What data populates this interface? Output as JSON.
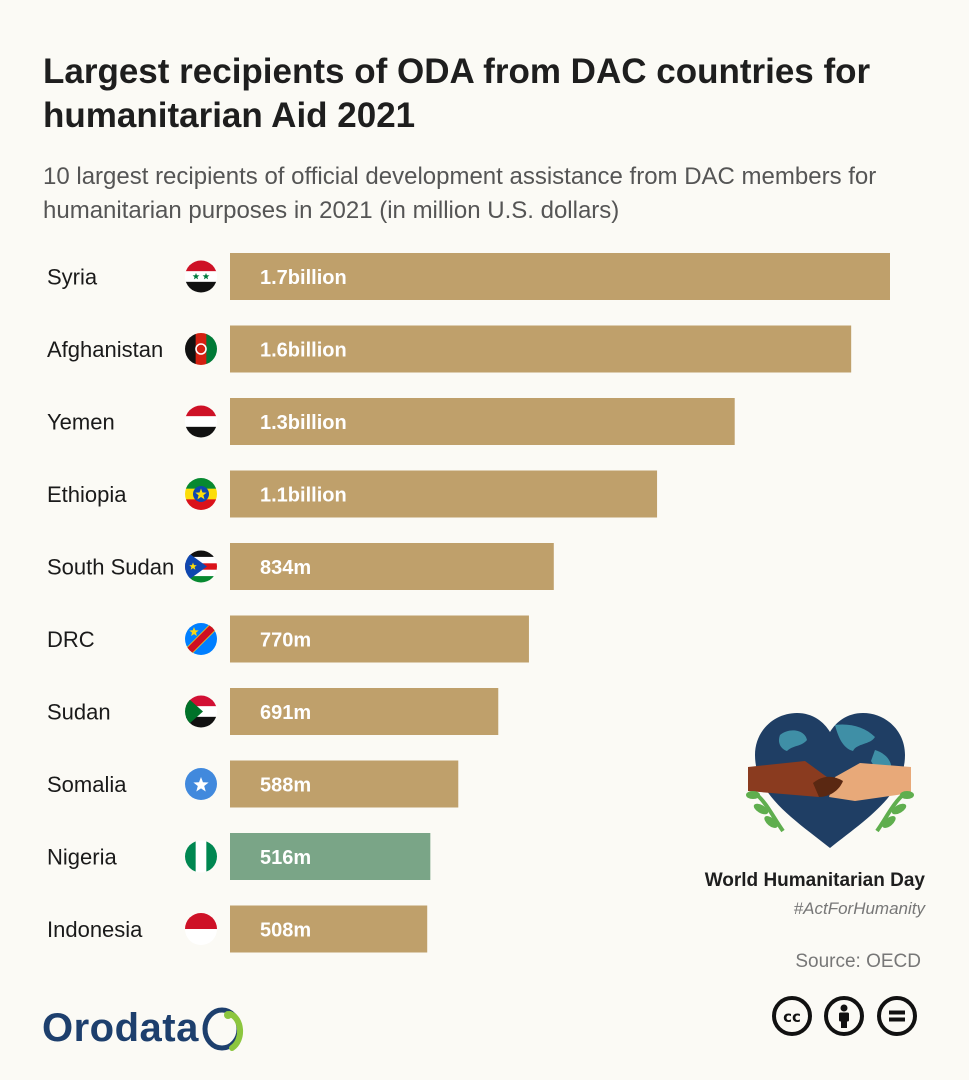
{
  "title": "Largest recipients of ODA from DAC countries for humanitarian Aid 2021",
  "subtitle": "10 largest recipients of official development assistance from DAC members for humanitarian purposes in 2021 (in million U.S. dollars)",
  "colors": {
    "bar": "#bfa06b",
    "highlight": "#7aa587",
    "label_text": "#ffffff"
  },
  "chart_data": {
    "type": "bar",
    "orientation": "horizontal",
    "categories": [
      "Syria",
      "Afghanistan",
      "Yemen",
      "Ethiopia",
      "South Sudan",
      "DRC",
      "Sudan",
      "Somalia",
      "Nigeria",
      "Indonesia"
    ],
    "values": [
      1700,
      1600,
      1300,
      1100,
      834,
      770,
      691,
      588,
      516,
      508
    ],
    "value_labels": [
      "1.7billion",
      "1.6billion",
      "1.3billion",
      "1.1billion",
      "834m",
      "770m",
      "691m",
      "588m",
      "516m",
      "508m"
    ],
    "flags": [
      "syria-flag-icon",
      "afghanistan-flag-icon",
      "yemen-flag-icon",
      "ethiopia-flag-icon",
      "south-sudan-flag-icon",
      "drc-flag-icon",
      "sudan-flag-icon",
      "somalia-flag-icon",
      "nigeria-flag-icon",
      "indonesia-flag-icon"
    ],
    "highlight": "Nigeria",
    "grid": false,
    "legend": "none"
  },
  "campaign": {
    "name": "World Humanitarian Day",
    "hashtag": "#ActForHumanity",
    "icon": "heart-globe-hands-icon"
  },
  "source": "Source: OECD",
  "brand": "Orodata",
  "license_icons": [
    "cc-icon",
    "attribution-icon",
    "no-derivatives-icon"
  ]
}
